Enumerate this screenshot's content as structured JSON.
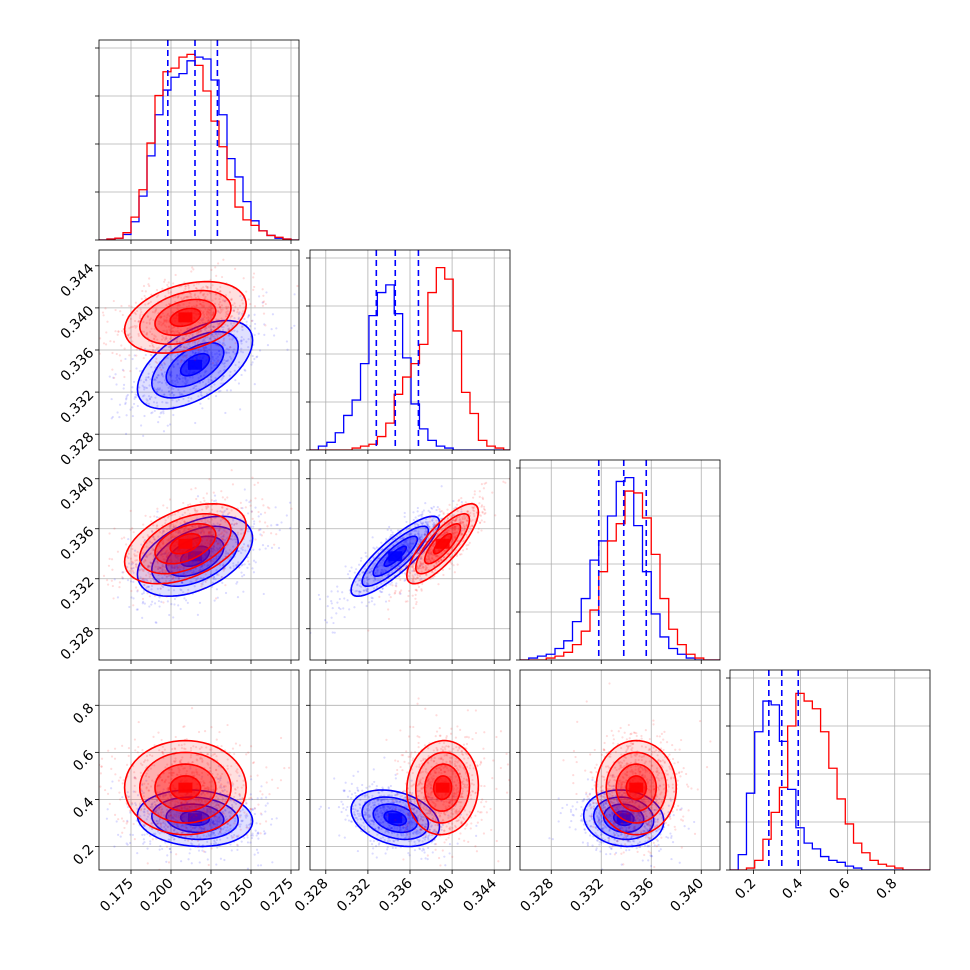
{
  "chart_data": {
    "type": "corner",
    "ndim": 4,
    "colors": {
      "series_a": "#0000ff",
      "series_b": "#ff0000",
      "grid": "#b0b0b0"
    },
    "grid": true,
    "series": [
      {
        "color": "#0000ff",
        "medians": [
          0.215,
          0.3346,
          0.3338,
          0.32
        ],
        "q16": [
          0.198,
          0.3328,
          0.3318,
          0.265
        ],
        "q84": [
          0.229,
          0.3368,
          0.3356,
          0.39
        ]
      },
      {
        "color": "#ff0000",
        "medians": [
          0.209,
          0.3391,
          0.3348,
          0.45
        ]
      }
    ],
    "axes": [
      {
        "range": [
          0.155,
          0.28
        ],
        "ticks": [
          0.175,
          0.2,
          0.225,
          0.25,
          0.275
        ],
        "tick_labels": [
          "0.175",
          "0.200",
          "0.225",
          "0.250",
          "0.275"
        ]
      },
      {
        "range": [
          0.3265,
          0.3455
        ],
        "ticks": [
          0.328,
          0.332,
          0.336,
          0.34,
          0.344
        ],
        "tick_labels": [
          "0.328",
          "0.332",
          "0.336",
          "0.340",
          "0.344"
        ]
      },
      {
        "range": [
          0.3255,
          0.3415
        ],
        "ticks": [
          0.328,
          0.332,
          0.336,
          0.34
        ],
        "tick_labels": [
          "0.328",
          "0.332",
          "0.336",
          "0.340"
        ]
      },
      {
        "range": [
          0.1,
          0.95
        ],
        "ticks": [
          0.2,
          0.4,
          0.6,
          0.8
        ],
        "tick_labels": [
          "0.2",
          "0.4",
          "0.6",
          "0.8"
        ]
      }
    ],
    "histograms": [
      {
        "bins": [
          0.155,
          0.16,
          0.165,
          0.17,
          0.175,
          0.18,
          0.185,
          0.19,
          0.195,
          0.2,
          0.205,
          0.21,
          0.215,
          0.22,
          0.225,
          0.23,
          0.235,
          0.24,
          0.245,
          0.25,
          0.255,
          0.26,
          0.265,
          0.27,
          0.275,
          0.28
        ],
        "blue": [
          0,
          1,
          2,
          6,
          20,
          48,
          92,
          137,
          164,
          178,
          182,
          196,
          200,
          198,
          175,
          137,
          89,
          69,
          42,
          21,
          10,
          5,
          2,
          1,
          0
        ],
        "red": [
          0,
          1,
          2,
          8,
          25,
          55,
          106,
          158,
          184,
          188,
          200,
          203,
          191,
          163,
          130,
          102,
          66,
          36,
          22,
          16,
          10,
          5,
          3,
          1,
          0
        ],
        "ymax": 210
      },
      {
        "bins": [
          0.3265,
          0.3273,
          0.3281,
          0.3289,
          0.3297,
          0.3305,
          0.3313,
          0.3321,
          0.3329,
          0.3337,
          0.3345,
          0.3353,
          0.3361,
          0.3369,
          0.3377,
          0.3385,
          0.3393,
          0.3401,
          0.3409,
          0.3417,
          0.3425,
          0.3433,
          0.3441,
          0.3449,
          0.3455
        ],
        "blue": [
          0,
          0.02,
          0.04,
          0.09,
          0.18,
          0.26,
          0.45,
          0.7,
          0.82,
          0.86,
          0.71,
          0.48,
          0.24,
          0.11,
          0.05,
          0.02,
          0.01,
          0,
          0,
          0,
          0,
          0,
          0,
          0
        ],
        "red": [
          0,
          0,
          0,
          0,
          0,
          0.01,
          0.02,
          0.03,
          0.07,
          0.14,
          0.29,
          0.38,
          0.45,
          0.55,
          0.82,
          0.95,
          0.89,
          0.62,
          0.3,
          0.19,
          0.05,
          0.02,
          0.01,
          0
        ],
        "ymax": 1.0
      },
      {
        "bins": [
          0.3255,
          0.3262,
          0.3269,
          0.3276,
          0.3283,
          0.329,
          0.3297,
          0.3304,
          0.3311,
          0.3318,
          0.3325,
          0.3332,
          0.3339,
          0.3346,
          0.3353,
          0.336,
          0.3367,
          0.3374,
          0.3381,
          0.3388,
          0.3395,
          0.3402,
          0.3409,
          0.3415
        ],
        "blue": [
          0,
          0.01,
          0.02,
          0.03,
          0.06,
          0.1,
          0.2,
          0.32,
          0.52,
          0.62,
          0.75,
          0.93,
          0.95,
          0.7,
          0.46,
          0.24,
          0.12,
          0.06,
          0.03,
          0.01,
          0,
          0,
          0
        ],
        "red": [
          0,
          0,
          0,
          0.01,
          0.02,
          0.04,
          0.08,
          0.15,
          0.26,
          0.46,
          0.62,
          0.71,
          0.88,
          0.87,
          0.74,
          0.55,
          0.32,
          0.16,
          0.08,
          0.03,
          0.01,
          0,
          0
        ],
        "ymax": 1.0
      },
      {
        "bins": [
          0.1,
          0.135,
          0.17,
          0.205,
          0.24,
          0.275,
          0.31,
          0.345,
          0.38,
          0.415,
          0.45,
          0.485,
          0.52,
          0.555,
          0.59,
          0.625,
          0.66,
          0.695,
          0.73,
          0.765,
          0.8,
          0.835,
          0.87,
          0.905,
          0.95
        ],
        "blue": [
          0,
          0.08,
          0.4,
          0.72,
          0.88,
          0.86,
          0.67,
          0.42,
          0.22,
          0.14,
          0.11,
          0.07,
          0.05,
          0.04,
          0.02,
          0.01,
          0,
          0,
          0,
          0,
          0,
          0,
          0,
          0
        ],
        "red": [
          0,
          0,
          0.01,
          0.05,
          0.16,
          0.3,
          0.43,
          0.75,
          0.92,
          0.88,
          0.84,
          0.72,
          0.53,
          0.37,
          0.24,
          0.14,
          0.09,
          0.05,
          0.03,
          0.02,
          0.01,
          0,
          0,
          0
        ],
        "ymax": 1.0
      }
    ],
    "pairs": [
      {
        "row": 1,
        "col": 0,
        "blue": {
          "mean": [
            0.215,
            0.3346
          ],
          "sd": [
            0.018,
            0.0021
          ],
          "rho": 0.55
        },
        "red": {
          "mean": [
            0.209,
            0.3391
          ],
          "sd": [
            0.019,
            0.0017
          ],
          "rho": 0.35
        }
      },
      {
        "row": 2,
        "col": 0,
        "blue": {
          "mean": [
            0.215,
            0.3338
          ],
          "sd": [
            0.018,
            0.0016
          ],
          "rho": 0.45
        },
        "red": {
          "mean": [
            0.209,
            0.3348
          ],
          "sd": [
            0.019,
            0.0016
          ],
          "rho": 0.45
        }
      },
      {
        "row": 2,
        "col": 1,
        "blue": {
          "mean": [
            0.3346,
            0.3338
          ],
          "sd": [
            0.0021,
            0.0016
          ],
          "rho": 0.85
        },
        "red": {
          "mean": [
            0.3391,
            0.3348
          ],
          "sd": [
            0.0017,
            0.0016
          ],
          "rho": 0.8
        }
      },
      {
        "row": 3,
        "col": 0,
        "blue": {
          "mean": [
            0.215,
            0.32
          ],
          "sd": [
            0.018,
            0.06
          ],
          "rho": -0.1
        },
        "red": {
          "mean": [
            0.209,
            0.45
          ],
          "sd": [
            0.019,
            0.1
          ],
          "rho": 0.0
        }
      },
      {
        "row": 3,
        "col": 1,
        "blue": {
          "mean": [
            0.3346,
            0.32
          ],
          "sd": [
            0.0021,
            0.06
          ],
          "rho": -0.3
        },
        "red": {
          "mean": [
            0.3391,
            0.45
          ],
          "sd": [
            0.0017,
            0.1
          ],
          "rho": 0.05
        }
      },
      {
        "row": 3,
        "col": 2,
        "blue": {
          "mean": [
            0.3338,
            0.32
          ],
          "sd": [
            0.0016,
            0.06
          ],
          "rho": -0.1
        },
        "red": {
          "mean": [
            0.3348,
            0.45
          ],
          "sd": [
            0.0016,
            0.1
          ],
          "rho": 0.0
        }
      }
    ]
  }
}
